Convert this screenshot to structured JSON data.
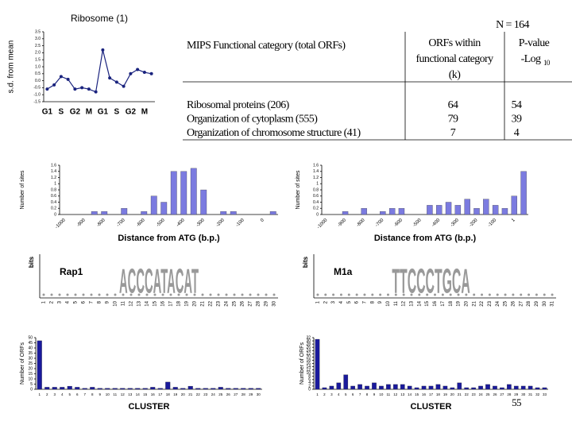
{
  "chart_data": [
    {
      "type": "line",
      "title": "Ribosome (1)",
      "y_label": "s.d. from mean",
      "categories": [
        "G1",
        null,
        "S",
        null,
        "G2",
        null,
        "M",
        null,
        "G1",
        null,
        "S",
        null,
        "G2",
        null,
        "M",
        null
      ],
      "values": [
        -0.6,
        -0.3,
        0.3,
        0.1,
        -0.6,
        -0.5,
        -0.6,
        -0.8,
        2.2,
        0.2,
        -0.1,
        -0.4,
        0.5,
        0.8,
        0.6,
        0.5
      ],
      "color": "#1a237e",
      "ylim": [
        -1.5,
        3.5
      ],
      "yticks": [
        -1.5,
        {
          "value": -1,
          "label": "-1.0"
        },
        -0.5,
        {
          "value": 0,
          "label": "0.0"
        },
        0.5,
        {
          "value": 1,
          "label": "1.0"
        },
        1.5,
        {
          "value": 2,
          "label": "2.0"
        },
        2.5,
        {
          "value": 3,
          "label": "3.0"
        },
        3.5
      ]
    },
    {
      "type": "bar",
      "x_label": "Distance from ATG (b.p.)",
      "y_label": "Number of sites",
      "categories": [
        "-1000",
        null,
        "-900",
        null,
        "-800",
        null,
        "-700",
        null,
        "-600",
        null,
        "-500",
        null,
        "-400",
        null,
        "-300",
        null,
        "-200",
        null,
        "-100",
        null,
        "0",
        null
      ],
      "values": [
        0,
        0,
        0,
        0.1,
        0.1,
        0,
        0.2,
        0,
        0.1,
        0.6,
        0.4,
        1.4,
        1.4,
        1.5,
        0.8,
        0,
        0.1,
        0.1,
        0,
        0,
        0,
        0.1
      ],
      "color": "#7b7be0",
      "ylim": [
        0,
        1.6
      ],
      "yticks": [
        0,
        0.2,
        0.4,
        0.6,
        0.8,
        1,
        1.2,
        1.4,
        1.6
      ]
    },
    {
      "type": "bar",
      "x_label": "Distance from ATG (b.p.)",
      "y_label": "Number of sites",
      "categories": [
        "-1000",
        null,
        "-900",
        null,
        "-800",
        null,
        "-700",
        null,
        "-600",
        null,
        "-500",
        null,
        "-400",
        null,
        "-300",
        null,
        "-200",
        null,
        "-100",
        null,
        "1",
        null
      ],
      "values": [
        0,
        0,
        0.1,
        0,
        0.2,
        0,
        0.1,
        0.2,
        0.2,
        0,
        0,
        0.3,
        0.3,
        0.4,
        0.3,
        0.5,
        0.2,
        0.5,
        0.3,
        0.2,
        0.6,
        1.4
      ],
      "color": "#7b7be0",
      "ylim": [
        0,
        1.6
      ],
      "yticks": [
        0,
        0.2,
        0.4,
        0.6,
        0.8,
        1,
        1.2,
        1.4,
        1.6
      ]
    },
    {
      "type": "bar",
      "x_label": "CLUSTER",
      "y_label": "Number of ORFs",
      "categories": [
        "1",
        "2",
        "3",
        "4",
        "5",
        "6",
        "7",
        "8",
        "9",
        "10",
        "11",
        "12",
        "13",
        "14",
        "15",
        "16",
        "17",
        "18",
        "19",
        "20",
        "21",
        "22",
        "23",
        "24",
        "25",
        "26",
        "27",
        "28",
        "29",
        "30"
      ],
      "values": [
        47,
        2,
        2,
        2,
        3,
        2,
        1,
        2,
        1,
        1,
        1,
        1,
        1,
        1,
        1,
        2,
        1,
        7,
        2,
        1,
        3,
        1,
        1,
        1,
        2,
        1,
        1,
        1,
        1,
        1
      ],
      "color": "#1a1a9c",
      "ylim": [
        0,
        50
      ],
      "yticks": [
        0,
        5,
        10,
        15,
        20,
        25,
        30,
        35,
        40,
        45,
        50
      ]
    },
    {
      "type": "bar",
      "x_label": "CLUSTER",
      "y_label": "Number of ORFs",
      "categories": [
        "1",
        "2",
        "3",
        "4",
        "5",
        "6",
        "7",
        "8",
        "9",
        "10",
        "11",
        "12",
        "13",
        "14",
        "15",
        "16",
        "17",
        "18",
        "19",
        "20",
        "21",
        "22",
        "23",
        "24",
        "25",
        "26",
        "27",
        "28",
        "29",
        "30",
        "31",
        "32",
        "33"
      ],
      "values": [
        31,
        1,
        2,
        4,
        9,
        2,
        3,
        2,
        4,
        2,
        3,
        3,
        3,
        2,
        1,
        2,
        2,
        3,
        2,
        1,
        4,
        1,
        1,
        2,
        3,
        2,
        1,
        3,
        2,
        2,
        2,
        1,
        1
      ],
      "color": "#1a1a9c",
      "ylim": [
        0,
        32
      ],
      "yticks": [
        0,
        2,
        4,
        6,
        8,
        10,
        12,
        14,
        16,
        18,
        20,
        22,
        24,
        26,
        28,
        30,
        32
      ]
    }
  ],
  "n_label": "N = 164",
  "table": {
    "headers": [
      [
        "MIPS Functional category (total ORFs)"
      ],
      [
        "ORFs within",
        "functional category",
        "(k)"
      ],
      [
        "P-value",
        "-Log"
      ]
    ],
    "log_base": "10",
    "rows": [
      [
        "Ribosomal proteins (206)",
        64,
        54
      ],
      [
        "Organization of cytoplasm (555)",
        79,
        39
      ],
      [
        "Organization of chromosome structure (41)",
        7,
        4
      ]
    ]
  },
  "logos": [
    {
      "name": "Rap1",
      "y_label": "bits",
      "motif": "ACCCATACAT",
      "positions": [
        1,
        2,
        3,
        4,
        5,
        6,
        7,
        8,
        9,
        10,
        11,
        12,
        13,
        14,
        15,
        16,
        17,
        18,
        19,
        20,
        21,
        22,
        23,
        24,
        25,
        26,
        27,
        28,
        29,
        30
      ]
    },
    {
      "name": "M1a",
      "y_label": "bits",
      "motif": "TTCCCTGCA",
      "positions": [
        1,
        2,
        3,
        4,
        5,
        6,
        7,
        8,
        9,
        10,
        11,
        12,
        13,
        14,
        15,
        16,
        17,
        18,
        19,
        20,
        21,
        22,
        23,
        24,
        25,
        26,
        27,
        28,
        29,
        30,
        31
      ]
    }
  ],
  "page_number": 55
}
